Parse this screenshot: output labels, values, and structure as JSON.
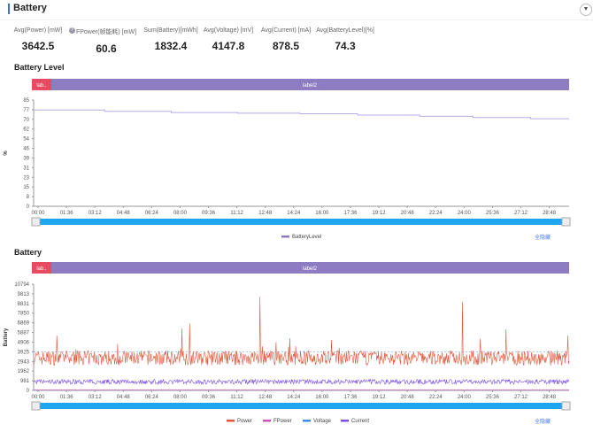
{
  "header": {
    "title": "Battery",
    "collapse_icon": "chevron-down-icon"
  },
  "stats": [
    {
      "label": "Avg(Power) [mW]",
      "value": "3642.5",
      "help": true
    },
    {
      "label": "FPower(帧能耗) [mW]",
      "value": "60.6"
    },
    {
      "label": "Sum(Battery)[mWh]",
      "value": "1832.4"
    },
    {
      "label": "Avg(Voltage) [mV]",
      "value": "4147.8"
    },
    {
      "label": "Avg(Current) [mA]",
      "value": "878.5"
    },
    {
      "label": "Avg(BatteryLevel)[%]",
      "value": "74.3"
    }
  ],
  "colors": {
    "label1": "#e84a5f",
    "label2": "#8e7cc3",
    "slider": "#1ea7f0",
    "power": "#e0573c",
    "fpower": "#d04fbf",
    "voltage": "#3a8ee6",
    "current": "#7a4fe0",
    "battery": "#b8a9e8"
  },
  "hide_all": "全隐藏",
  "chart_data": [
    {
      "type": "line",
      "title": "Battery Level",
      "ylabel": "%",
      "labels": [
        "lab..",
        "label2"
      ],
      "yticks": [
        85,
        77,
        70,
        62,
        54,
        46,
        39,
        31,
        23,
        15,
        8,
        0
      ],
      "ylim": [
        0,
        85
      ],
      "xticks": [
        "00:00",
        "01:36",
        "03:12",
        "04:48",
        "06:24",
        "08:00",
        "09:36",
        "11:12",
        "12:48",
        "14:24",
        "16:00",
        "17:36",
        "19:12",
        "20:48",
        "22:24",
        "24:00",
        "25:36",
        "27:12",
        "28:48"
      ],
      "series": [
        {
          "name": "BatteryLevel",
          "x": [
            "00:00",
            "03:45",
            "07:30",
            "11:15",
            "14:45",
            "18:00",
            "21:30",
            "24:30",
            "27:45"
          ],
          "values": [
            77,
            76,
            75,
            74.5,
            74,
            73,
            72,
            71,
            70
          ]
        }
      ]
    },
    {
      "type": "line",
      "title": "Battery",
      "ylabel": "Battery",
      "labels": [
        "lab..",
        "label2"
      ],
      "yticks": [
        10794,
        9813,
        8831,
        7850,
        6869,
        5887,
        4906,
        3925,
        2943,
        1962,
        981,
        0
      ],
      "ylim": [
        0,
        10794
      ],
      "xticks": [
        "00:00",
        "01:36",
        "03:12",
        "04:48",
        "06:24",
        "08:00",
        "09:36",
        "11:12",
        "12:48",
        "14:24",
        "16:00",
        "17:36",
        "19:12",
        "20:48",
        "22:24",
        "24:00",
        "25:36",
        "27:12",
        "28:48"
      ],
      "series": [
        {
          "name": "Power",
          "mean": 3642.5
        },
        {
          "name": "FPower",
          "mean": 60.6
        },
        {
          "name": "Voltage",
          "mean": 4147.8
        },
        {
          "name": "Current",
          "mean": 878.5
        }
      ]
    }
  ]
}
